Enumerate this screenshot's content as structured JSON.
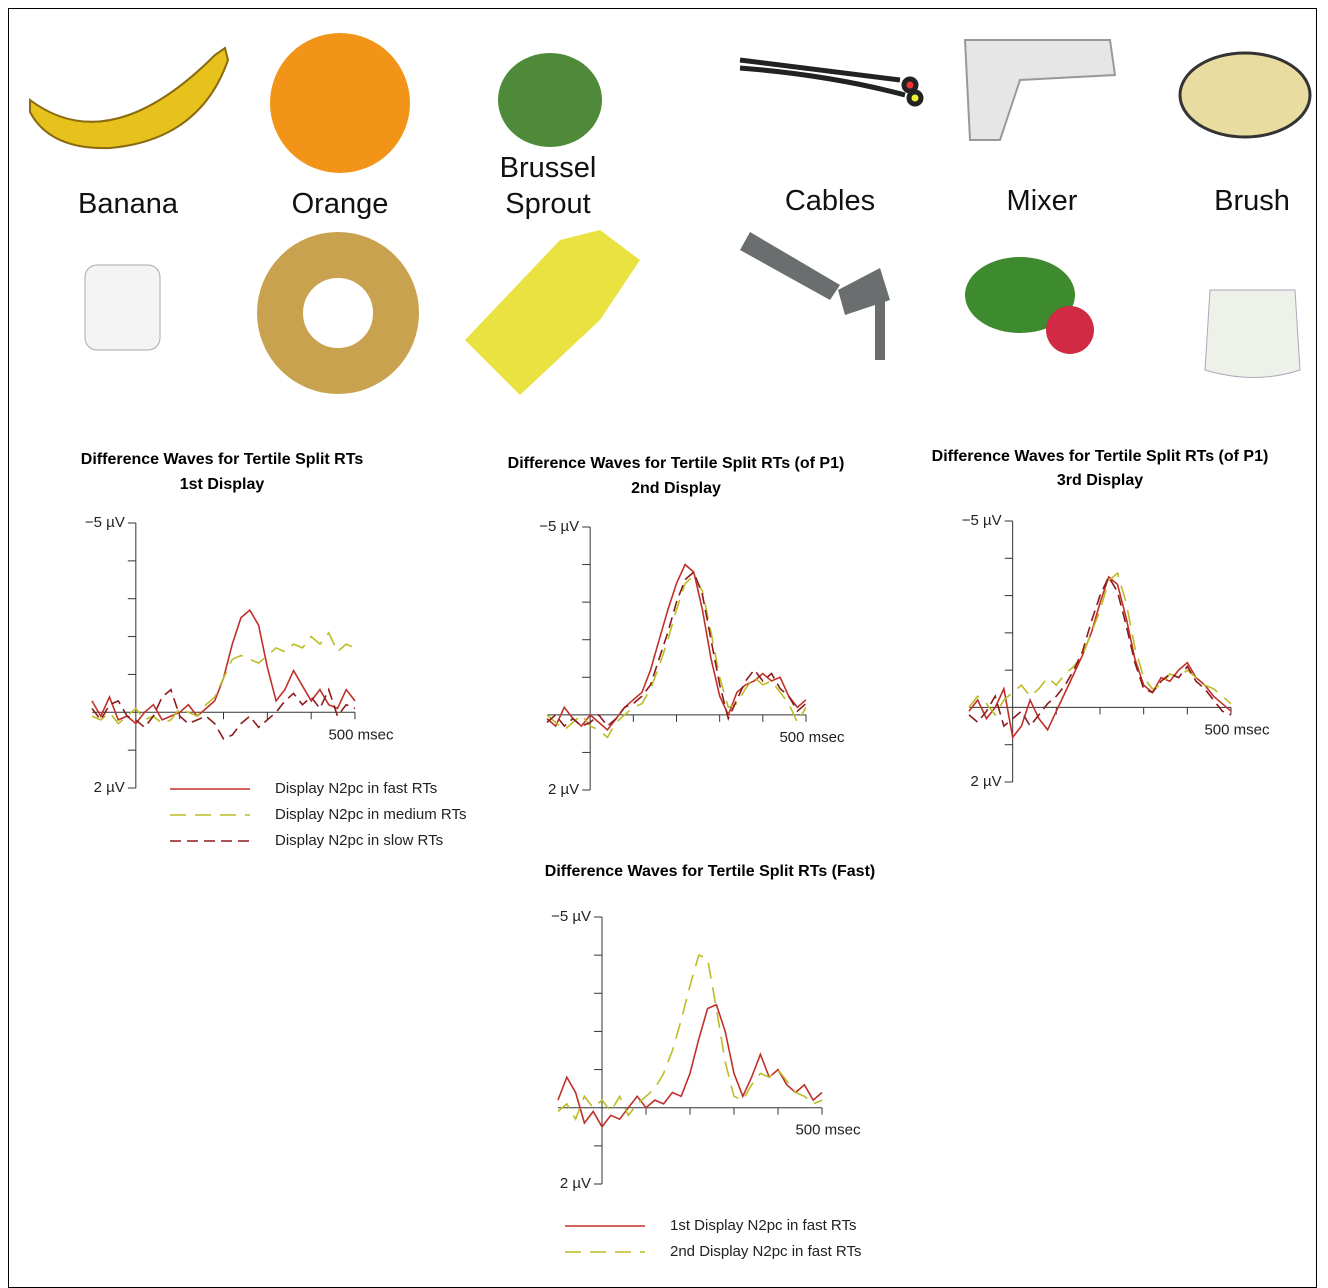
{
  "stimuli": [
    {
      "label": "Banana"
    },
    {
      "label": "Orange"
    },
    {
      "label": "Brussel Sprout"
    },
    {
      "label": "Cables"
    },
    {
      "label": "Mixer"
    },
    {
      "label": "Brush"
    }
  ],
  "chart_data": [
    {
      "type": "line",
      "title": "Difference Waves for Tertile Split RTs",
      "subtitle": "1st Display",
      "x": [
        -100,
        -80,
        -60,
        -40,
        -20,
        0,
        20,
        40,
        60,
        80,
        100,
        120,
        140,
        160,
        180,
        200,
        220,
        240,
        260,
        280,
        300,
        320,
        340,
        360,
        380,
        400,
        420,
        440,
        460,
        480,
        500
      ],
      "xlim": [
        -100,
        500
      ],
      "xticks": [
        {
          "value": 100,
          "label": null
        },
        {
          "value": 200,
          "label": null
        },
        {
          "value": 300,
          "label": null
        },
        {
          "value": 400,
          "label": null
        },
        {
          "value": 500,
          "label": "500 msec"
        }
      ],
      "ylim": [
        2,
        -5
      ],
      "yticks": [
        {
          "value": -5,
          "label": "−5 µV"
        },
        {
          "value": -4,
          "label": null
        },
        {
          "value": -3,
          "label": null
        },
        {
          "value": -2,
          "label": null
        },
        {
          "value": -1,
          "label": null
        },
        {
          "value": 1,
          "label": null
        },
        {
          "value": 2,
          "label": "2 µV"
        }
      ],
      "legend": "bottom",
      "series": [
        {
          "name": "Display N2pc in fast RTs",
          "color": "#c0302a",
          "style": "solid",
          "values": [
            -0.3,
            0.1,
            -0.4,
            0.2,
            0.1,
            0.3,
            0.0,
            -0.2,
            0.2,
            0.1,
            0.0,
            -0.2,
            0.1,
            -0.1,
            -0.3,
            -0.9,
            -1.8,
            -2.5,
            -2.7,
            -2.3,
            -1.2,
            -0.3,
            -0.6,
            -1.1,
            -0.7,
            -0.3,
            -0.6,
            -0.2,
            -0.1,
            -0.6,
            -0.3
          ]
        },
        {
          "name": "Display N2pc in medium RTs",
          "color": "#bcbc24",
          "style": "long-dash",
          "values": [
            0.1,
            0.2,
            0.0,
            0.3,
            0.1,
            -0.1,
            0.2,
            0.1,
            0.3,
            0.2,
            -0.1,
            0.0,
            0.1,
            -0.2,
            -0.4,
            -0.9,
            -1.4,
            -1.5,
            -1.4,
            -1.3,
            -1.5,
            -1.7,
            -1.6,
            -1.8,
            -1.7,
            -2.0,
            -1.8,
            -2.1,
            -1.6,
            -1.8,
            -1.7
          ]
        },
        {
          "name": "Display N2pc in slow RTs",
          "color": "#8b1c1c",
          "style": "dash",
          "values": [
            -0.1,
            0.2,
            -0.2,
            -0.3,
            0.1,
            0.2,
            0.4,
            0.1,
            -0.4,
            -0.6,
            0.1,
            0.3,
            0.2,
            0.1,
            0.3,
            0.7,
            0.6,
            0.3,
            0.1,
            0.4,
            0.2,
            0.0,
            -0.3,
            -0.5,
            -0.2,
            -0.4,
            -0.1,
            -0.6,
            0.1,
            -0.2,
            -0.1
          ]
        }
      ]
    },
    {
      "type": "line",
      "title": "Difference Waves for Tertile Split RTs (of P1)",
      "subtitle": "2nd Display",
      "x": [
        -100,
        -80,
        -60,
        -40,
        -20,
        0,
        20,
        40,
        60,
        80,
        100,
        120,
        140,
        160,
        180,
        200,
        220,
        240,
        260,
        280,
        300,
        320,
        340,
        360,
        380,
        400,
        420,
        440,
        460,
        480,
        500
      ],
      "xlim": [
        -100,
        500
      ],
      "xticks": [
        {
          "value": 100,
          "label": null
        },
        {
          "value": 200,
          "label": null
        },
        {
          "value": 300,
          "label": null
        },
        {
          "value": 400,
          "label": null
        },
        {
          "value": 500,
          "label": "500 msec"
        }
      ],
      "ylim": [
        2,
        -5
      ],
      "yticks": [
        {
          "value": -5,
          "label": "−5 µV"
        },
        {
          "value": -4,
          "label": null
        },
        {
          "value": -3,
          "label": null
        },
        {
          "value": -2,
          "label": null
        },
        {
          "value": -1,
          "label": null
        },
        {
          "value": 1,
          "label": null
        },
        {
          "value": 2,
          "label": "2 µV"
        }
      ],
      "series": [
        {
          "color": "#c0302a",
          "style": "solid",
          "values": [
            0.1,
            0.3,
            -0.2,
            0.1,
            0.3,
            0.0,
            0.2,
            0.4,
            0.1,
            -0.2,
            -0.4,
            -0.6,
            -1.2,
            -2.0,
            -2.8,
            -3.5,
            -4.0,
            -3.8,
            -2.8,
            -1.5,
            -0.5,
            0.0,
            -0.6,
            -0.8,
            -0.9,
            -1.1,
            -0.9,
            -1.0,
            -0.5,
            -0.2,
            -0.4
          ]
        },
        {
          "color": "#bcbc24",
          "style": "long-dash",
          "values": [
            0.0,
            0.2,
            0.4,
            0.2,
            0.0,
            0.3,
            0.4,
            0.6,
            0.2,
            0.0,
            -0.2,
            -0.3,
            -0.7,
            -1.3,
            -2.0,
            -2.8,
            -3.5,
            -3.7,
            -3.3,
            -2.2,
            -1.0,
            -0.2,
            -0.3,
            -0.7,
            -1.0,
            -0.8,
            -0.9,
            -0.6,
            -0.3,
            0.2,
            -0.2
          ]
        },
        {
          "color": "#8b1c1c",
          "style": "dash",
          "values": [
            0.2,
            0.0,
            0.3,
            0.1,
            0.3,
            0.2,
            0.0,
            0.3,
            0.1,
            -0.2,
            -0.3,
            -0.5,
            -0.8,
            -1.5,
            -2.2,
            -3.0,
            -3.6,
            -3.8,
            -3.2,
            -2.0,
            -0.8,
            0.1,
            -0.4,
            -0.9,
            -1.2,
            -0.9,
            -1.1,
            -0.7,
            -0.5,
            -0.1,
            -0.3
          ]
        }
      ]
    },
    {
      "type": "line",
      "title": "Difference Waves for Tertile Split RTs (of P1)",
      "subtitle": "3rd Display",
      "x": [
        -100,
        -80,
        -60,
        -40,
        -20,
        0,
        20,
        40,
        60,
        80,
        100,
        120,
        140,
        160,
        180,
        200,
        220,
        240,
        260,
        280,
        300,
        320,
        340,
        360,
        380,
        400,
        420,
        440,
        460,
        480,
        500
      ],
      "xlim": [
        -100,
        500
      ],
      "xticks": [
        {
          "value": 100,
          "label": null
        },
        {
          "value": 200,
          "label": null
        },
        {
          "value": 300,
          "label": null
        },
        {
          "value": 400,
          "label": null
        },
        {
          "value": 500,
          "label": "500 msec"
        }
      ],
      "ylim": [
        2,
        -5
      ],
      "yticks": [
        {
          "value": -5,
          "label": "−5 µV"
        },
        {
          "value": -4,
          "label": null
        },
        {
          "value": -3,
          "label": null
        },
        {
          "value": -2,
          "label": null
        },
        {
          "value": -1,
          "label": null
        },
        {
          "value": 1,
          "label": null
        },
        {
          "value": 2,
          "label": "2 µV"
        }
      ],
      "series": [
        {
          "color": "#c0302a",
          "style": "solid",
          "values": [
            0.1,
            -0.2,
            0.3,
            0.0,
            -0.5,
            0.8,
            0.5,
            -0.2,
            0.3,
            0.6,
            0.1,
            -0.4,
            -0.9,
            -1.4,
            -2.0,
            -2.8,
            -3.5,
            -3.3,
            -2.4,
            -1.3,
            -0.6,
            -0.4,
            -0.8,
            -0.7,
            -1.0,
            -1.2,
            -0.8,
            -0.6,
            -0.3,
            -0.1,
            0.1
          ]
        },
        {
          "color": "#bcbc24",
          "style": "long-dash",
          "values": [
            0.0,
            -0.3,
            -0.1,
            0.2,
            -0.2,
            -0.4,
            -0.6,
            -0.3,
            -0.5,
            -0.8,
            -0.6,
            -0.9,
            -1.1,
            -1.4,
            -2.0,
            -2.6,
            -3.4,
            -3.6,
            -2.8,
            -1.6,
            -0.8,
            -0.5,
            -0.6,
            -0.9,
            -0.8,
            -1.0,
            -0.8,
            -0.6,
            -0.5,
            -0.3,
            -0.1
          ]
        },
        {
          "color": "#8b1c1c",
          "style": "dash",
          "values": [
            0.2,
            0.4,
            0.1,
            -0.3,
            0.5,
            0.3,
            0.1,
            0.5,
            0.2,
            -0.1,
            -0.3,
            -0.6,
            -1.0,
            -1.5,
            -2.3,
            -3.0,
            -3.5,
            -3.1,
            -2.2,
            -1.2,
            -0.5,
            -0.4,
            -0.7,
            -0.9,
            -0.8,
            -1.1,
            -0.7,
            -0.5,
            -0.2,
            0.1,
            0.2
          ]
        }
      ]
    },
    {
      "type": "line",
      "title": "Difference Waves for Tertile Split RTs (Fast)",
      "x": [
        -100,
        -80,
        -60,
        -40,
        -20,
        0,
        20,
        40,
        60,
        80,
        100,
        120,
        140,
        160,
        180,
        200,
        220,
        240,
        260,
        280,
        300,
        320,
        340,
        360,
        380,
        400,
        420,
        440,
        460,
        480,
        500
      ],
      "xlim": [
        -100,
        500
      ],
      "xticks": [
        {
          "value": 100,
          "label": null
        },
        {
          "value": 200,
          "label": null
        },
        {
          "value": 300,
          "label": null
        },
        {
          "value": 400,
          "label": null
        },
        {
          "value": 500,
          "label": "500 msec"
        }
      ],
      "ylim": [
        2,
        -5
      ],
      "yticks": [
        {
          "value": -5,
          "label": "−5 µV"
        },
        {
          "value": -4,
          "label": null
        },
        {
          "value": -3,
          "label": null
        },
        {
          "value": -2,
          "label": null
        },
        {
          "value": -1,
          "label": null
        },
        {
          "value": 1,
          "label": null
        },
        {
          "value": 2,
          "label": "2 µV"
        }
      ],
      "legend": "bottom",
      "series": [
        {
          "name": "1st Display N2pc in fast RTs",
          "color": "#c0302a",
          "style": "solid",
          "values": [
            -0.2,
            -0.8,
            -0.4,
            0.4,
            0.1,
            0.5,
            0.2,
            0.3,
            0.0,
            -0.3,
            0.0,
            -0.2,
            -0.1,
            -0.4,
            -0.3,
            -0.9,
            -1.8,
            -2.6,
            -2.7,
            -2.0,
            -0.9,
            -0.3,
            -0.8,
            -1.4,
            -0.8,
            -1.0,
            -0.6,
            -0.4,
            -0.6,
            -0.2,
            -0.4
          ]
        },
        {
          "name": "2nd Display N2pc in fast RTs",
          "color": "#bcbc24",
          "style": "long-dash",
          "values": [
            0.1,
            -0.1,
            0.3,
            -0.3,
            0.0,
            -0.2,
            0.1,
            -0.3,
            0.2,
            -0.1,
            -0.3,
            -0.5,
            -0.9,
            -1.5,
            -2.3,
            -3.2,
            -4.0,
            -3.9,
            -2.6,
            -1.2,
            -0.3,
            -0.2,
            -0.6,
            -0.9,
            -0.8,
            -1.0,
            -0.7,
            -0.4,
            -0.3,
            -0.1,
            -0.2
          ]
        }
      ]
    }
  ]
}
